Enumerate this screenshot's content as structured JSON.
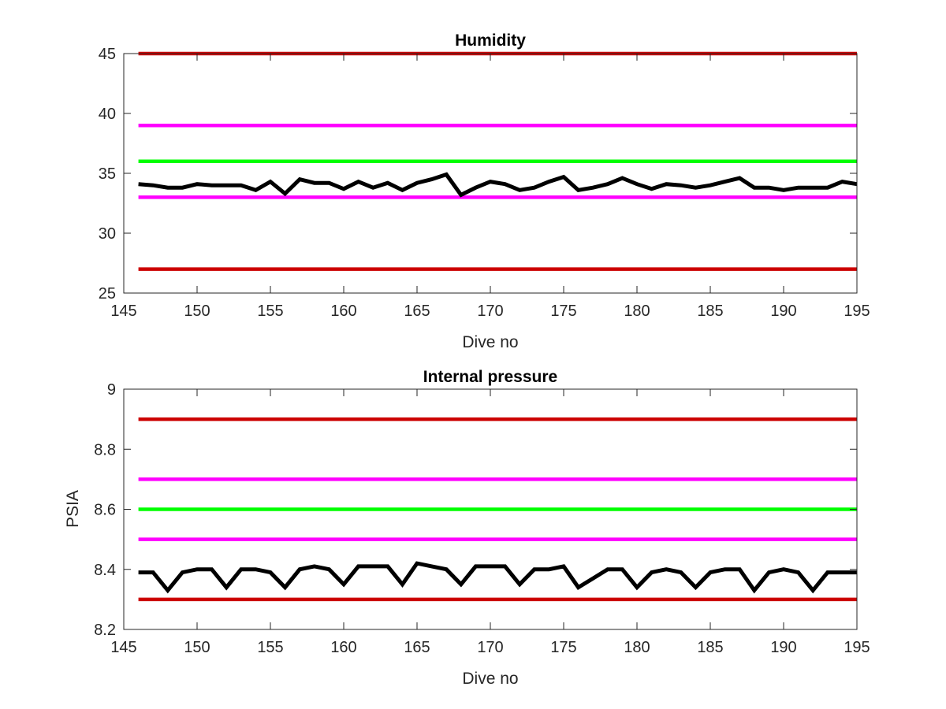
{
  "colors": {
    "red": "#cc0000",
    "magenta": "#ff00ff",
    "green": "#00ff00",
    "black": "#000000",
    "axis": "#262626"
  },
  "chart_data": [
    {
      "type": "line",
      "title": "Humidity",
      "xlabel": "Dive no",
      "ylabel": "",
      "xlim": [
        145,
        195
      ],
      "ylim": [
        25,
        45
      ],
      "xticks": [
        "145",
        "150",
        "155",
        "160",
        "165",
        "170",
        "175",
        "180",
        "185",
        "190",
        "195"
      ],
      "yticks": [
        "25",
        "30",
        "35",
        "40",
        "45"
      ],
      "grid": false,
      "series": [
        {
          "color": "#cc0000",
          "x": [
            146,
            195
          ],
          "y": [
            45,
            45
          ]
        },
        {
          "color": "#ff00ff",
          "x": [
            146,
            195
          ],
          "y": [
            39,
            39
          ]
        },
        {
          "color": "#00ff00",
          "x": [
            146,
            195
          ],
          "y": [
            36,
            36
          ]
        },
        {
          "color": "#ff00ff",
          "x": [
            146,
            195
          ],
          "y": [
            33,
            33
          ]
        },
        {
          "color": "#cc0000",
          "x": [
            146,
            195
          ],
          "y": [
            27,
            27
          ]
        },
        {
          "color": "#000000",
          "x": [
            146,
            147,
            148,
            149,
            150,
            151,
            152,
            153,
            154,
            155,
            156,
            157,
            158,
            159,
            160,
            161,
            162,
            163,
            164,
            165,
            166,
            167,
            168,
            169,
            170,
            171,
            172,
            173,
            174,
            175,
            176,
            177,
            178,
            179,
            180,
            181,
            182,
            183,
            184,
            185,
            186,
            187,
            188,
            189,
            190,
            191,
            192,
            193,
            194,
            195
          ],
          "y": [
            34.1,
            34.0,
            33.8,
            33.8,
            34.1,
            34.0,
            34.0,
            34.0,
            33.6,
            34.3,
            33.3,
            34.5,
            34.2,
            34.2,
            33.7,
            34.3,
            33.8,
            34.2,
            33.6,
            34.2,
            34.5,
            34.9,
            33.2,
            33.8,
            34.3,
            34.1,
            33.6,
            33.8,
            34.3,
            34.7,
            33.6,
            33.8,
            34.1,
            34.6,
            34.1,
            33.7,
            34.1,
            34.0,
            33.8,
            34.0,
            34.3,
            34.6,
            33.8,
            33.8,
            33.6,
            33.8,
            33.8,
            33.8,
            34.3,
            34.1
          ]
        }
      ]
    },
    {
      "type": "line",
      "title": "Internal pressure",
      "xlabel": "Dive no",
      "ylabel": "PSIA",
      "xlim": [
        145,
        195
      ],
      "ylim": [
        8.2,
        9.0
      ],
      "xticks": [
        "145",
        "150",
        "155",
        "160",
        "165",
        "170",
        "175",
        "180",
        "185",
        "190",
        "195"
      ],
      "yticks": [
        "8.2",
        "8.4",
        "8.6",
        "8.8",
        "9"
      ],
      "grid": false,
      "series": [
        {
          "color": "#cc0000",
          "x": [
            146,
            195
          ],
          "y": [
            8.9,
            8.9
          ]
        },
        {
          "color": "#ff00ff",
          "x": [
            146,
            195
          ],
          "y": [
            8.7,
            8.7
          ]
        },
        {
          "color": "#00ff00",
          "x": [
            146,
            195
          ],
          "y": [
            8.6,
            8.6
          ]
        },
        {
          "color": "#ff00ff",
          "x": [
            146,
            195
          ],
          "y": [
            8.5,
            8.5
          ]
        },
        {
          "color": "#cc0000",
          "x": [
            146,
            195
          ],
          "y": [
            8.3,
            8.3
          ]
        },
        {
          "color": "#000000",
          "x": [
            146,
            147,
            148,
            149,
            150,
            151,
            152,
            153,
            154,
            155,
            156,
            157,
            158,
            159,
            160,
            161,
            162,
            163,
            164,
            165,
            166,
            167,
            168,
            169,
            170,
            171,
            172,
            173,
            174,
            175,
            176,
            177,
            178,
            179,
            180,
            181,
            182,
            183,
            184,
            185,
            186,
            187,
            188,
            189,
            190,
            191,
            192,
            193,
            194,
            195
          ],
          "y": [
            8.39,
            8.39,
            8.33,
            8.39,
            8.4,
            8.4,
            8.34,
            8.4,
            8.4,
            8.39,
            8.34,
            8.4,
            8.41,
            8.4,
            8.35,
            8.41,
            8.41,
            8.41,
            8.35,
            8.42,
            8.41,
            8.4,
            8.35,
            8.41,
            8.41,
            8.41,
            8.35,
            8.4,
            8.4,
            8.41,
            8.34,
            8.37,
            8.4,
            8.4,
            8.34,
            8.39,
            8.4,
            8.39,
            8.34,
            8.39,
            8.4,
            8.4,
            8.33,
            8.39,
            8.4,
            8.39,
            8.33,
            8.39,
            8.39,
            8.39
          ]
        }
      ]
    }
  ]
}
